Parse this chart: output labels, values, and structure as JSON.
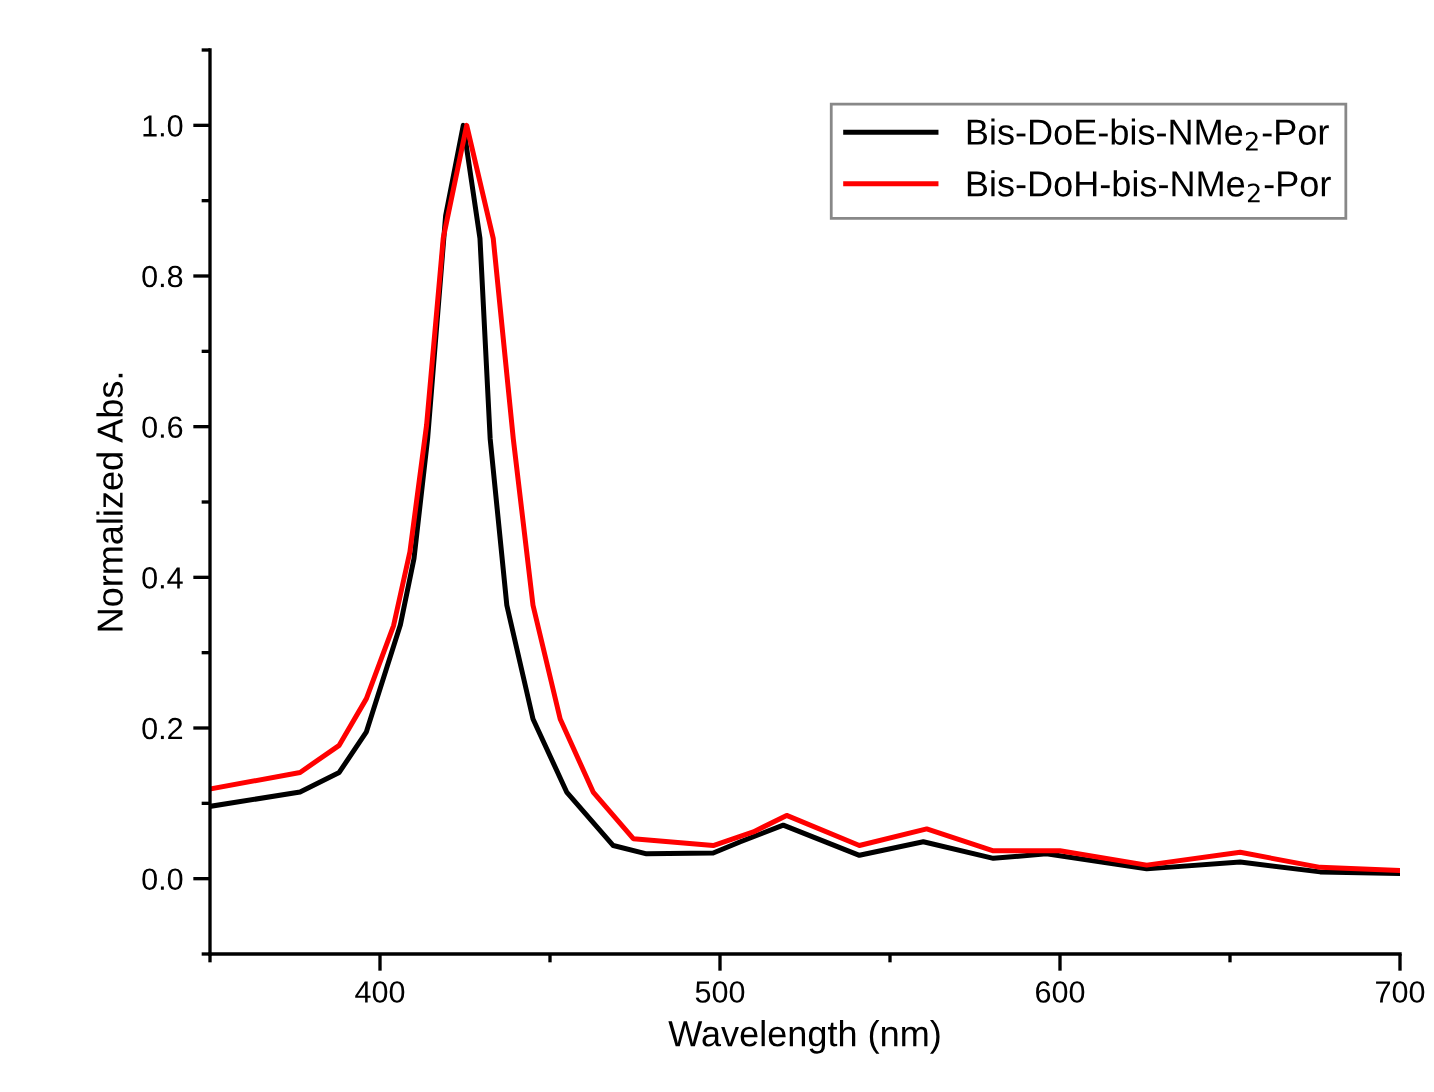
{
  "chart_data": {
    "type": "line",
    "xlabel": "Wavelength (nm)",
    "ylabel": "Normalized Abs.",
    "xlim": [
      350,
      700
    ],
    "xticks": [
      400,
      500,
      600,
      700
    ],
    "ylim": [
      -0.1,
      1.1
    ],
    "yticks": [
      {
        "value": 0,
        "label": "0.0"
      },
      {
        "value": 0.2,
        "label": "0.2"
      },
      {
        "value": 0.4,
        "label": "0.4"
      },
      {
        "value": 0.6,
        "label": "0.6"
      },
      {
        "value": 0.8,
        "label": "0.8"
      },
      {
        "value": 1.0,
        "label": "1.0"
      }
    ],
    "grid": false,
    "legend": "top right",
    "marker": "none",
    "line_style": "solid",
    "series": [
      {
        "name": "Bis-DoE-bis-NMe$_{2}$-Por",
        "color": "#000000",
        "x": [
          350,
          376.5,
          388,
          396,
          406,
          410,
          414,
          419.3,
          424.5,
          429.4,
          432.4,
          437.3,
          445,
          454.9,
          468.6,
          478.4,
          498,
          506,
          518.6,
          541,
          559.8,
          580.4,
          596,
          625.5,
          653,
          676.5,
          700
        ],
        "values": [
          0.096,
          0.115,
          0.141,
          0.195,
          0.337,
          0.425,
          0.584,
          0.88,
          1.0,
          0.85,
          0.584,
          0.363,
          0.212,
          0.115,
          0.044,
          0.033,
          0.034,
          0.049,
          0.071,
          0.031,
          0.049,
          0.027,
          0.033,
          0.013,
          0.022,
          0.009,
          0.007
        ]
      },
      {
        "name": "Bis-DoH-bis-NMe$_{2}$-Por",
        "color": "#ff0000",
        "x": [
          350,
          376.5,
          388,
          396,
          404,
          408.8,
          413.7,
          418.6,
          425.5,
          433.3,
          439.2,
          445,
          453,
          462.7,
          474.5,
          498,
          509.8,
          519.6,
          541,
          560.8,
          580.4,
          600,
          625.5,
          653,
          676.5,
          700
        ],
        "values": [
          0.119,
          0.141,
          0.177,
          0.239,
          0.336,
          0.434,
          0.602,
          0.85,
          1.0,
          0.85,
          0.584,
          0.363,
          0.212,
          0.115,
          0.053,
          0.044,
          0.062,
          0.084,
          0.044,
          0.066,
          0.037,
          0.037,
          0.018,
          0.035,
          0.015,
          0.011
        ]
      }
    ]
  }
}
